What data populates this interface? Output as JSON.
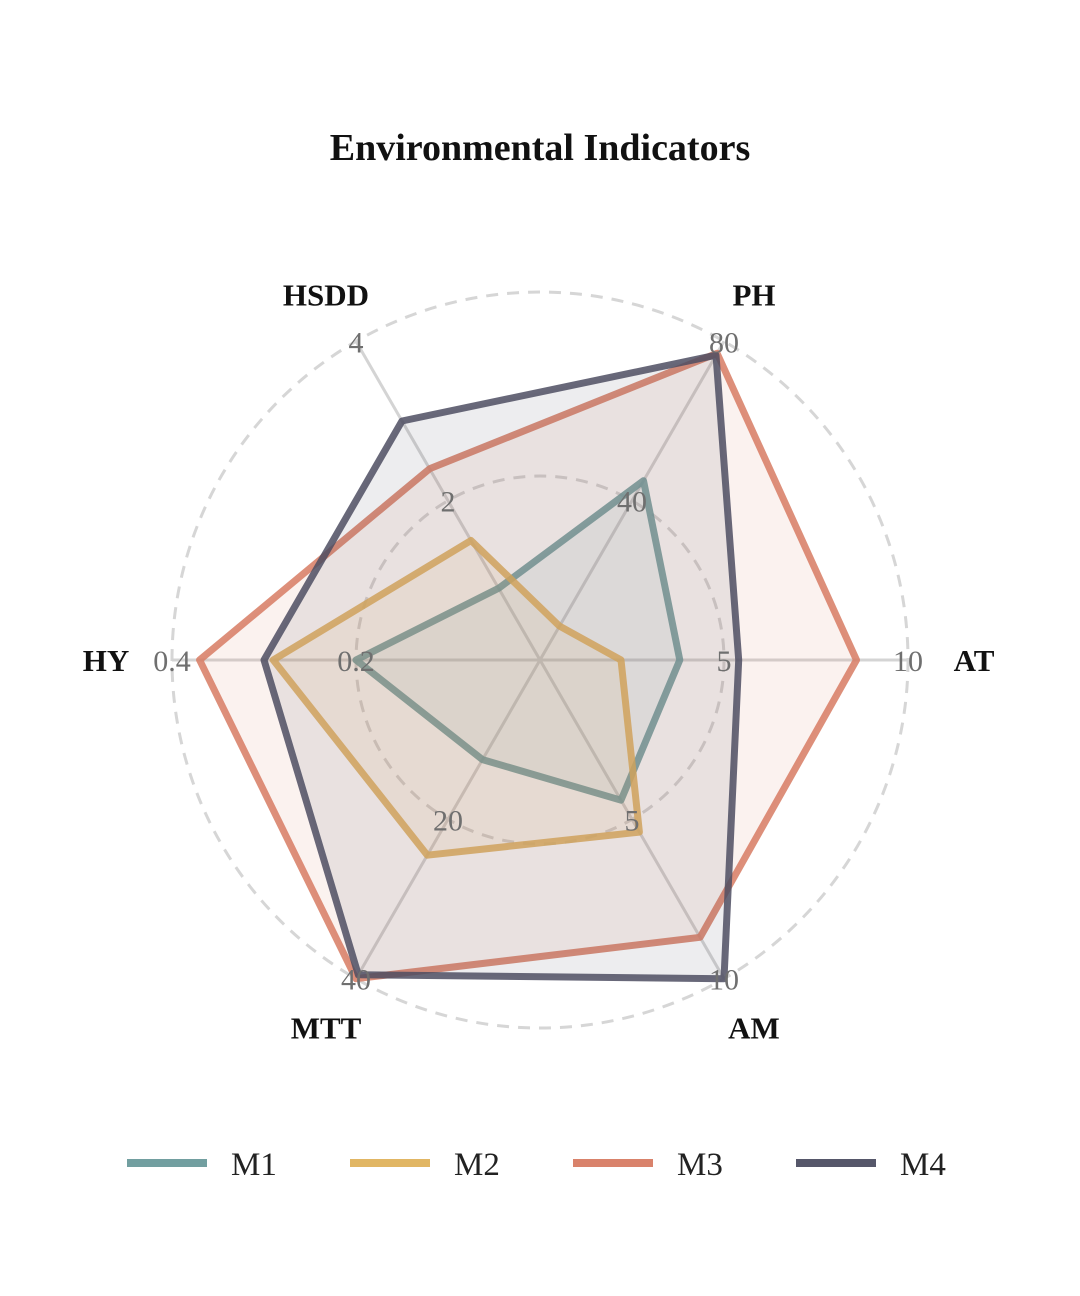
{
  "chart_data": {
    "type": "radar",
    "title": "Environmental Indicators",
    "axes": [
      {
        "name": "AT",
        "max": 10,
        "ticks": [
          "5",
          "10"
        ]
      },
      {
        "name": "PH",
        "max": 80,
        "ticks": [
          "40",
          "80"
        ]
      },
      {
        "name": "HSDD",
        "max": 4,
        "ticks": [
          "2",
          "4"
        ]
      },
      {
        "name": "HY",
        "max": 0.4,
        "ticks": [
          "0.2",
          "0.4"
        ]
      },
      {
        "name": "MTT",
        "max": 40,
        "ticks": [
          "20",
          "40"
        ]
      },
      {
        "name": "AM",
        "max": 10,
        "ticks": [
          "5",
          "10"
        ]
      }
    ],
    "grid": "dashed-circles",
    "legend_position": "bottom",
    "series": [
      {
        "name": "M1",
        "color": "#6a9a9b",
        "values": [
          3.8,
          45,
          0.9,
          0.2,
          12.5,
          4.4
        ]
      },
      {
        "name": "M2",
        "color": "#dfb25c",
        "values": [
          2.2,
          8.5,
          1.5,
          0.29,
          24.5,
          5.4
        ]
      },
      {
        "name": "M3",
        "color": "#d77b63",
        "values": [
          8.6,
          77,
          2.4,
          0.37,
          40,
          8.7
        ]
      },
      {
        "name": "M4",
        "color": "#4d4e62",
        "values": [
          5.4,
          76.5,
          3.0,
          0.3,
          39.5,
          10
        ]
      }
    ]
  }
}
